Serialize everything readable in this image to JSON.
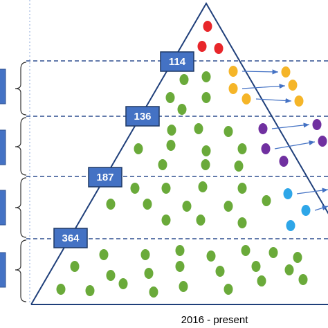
{
  "labels": [
    "114",
    "136",
    "187",
    "364"
  ],
  "caption": "2016 - present"
}
